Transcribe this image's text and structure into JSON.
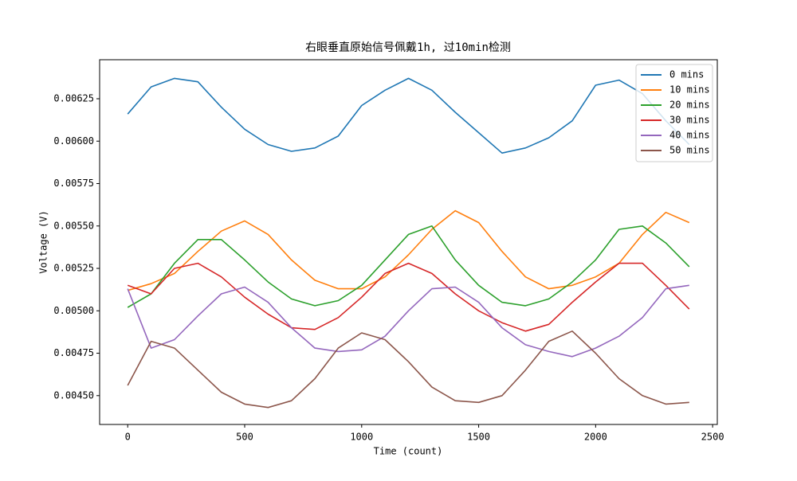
{
  "chart_data": {
    "type": "line",
    "title": "右眼垂直原始信号佩戴1h, 过10min检测",
    "x_label": "Time (count)",
    "y_label": "Voltage (V)",
    "x": [
      0,
      100,
      200,
      300,
      400,
      500,
      600,
      700,
      800,
      900,
      1000,
      1100,
      1200,
      1300,
      1400,
      1500,
      1600,
      1700,
      1800,
      1900,
      2000,
      2100,
      2200,
      2300,
      2400
    ],
    "series": [
      {
        "name": "0 mins",
        "color": "#1f77b4",
        "values": [
          0.00616,
          0.00632,
          0.00637,
          0.00635,
          0.0062,
          0.00607,
          0.00598,
          0.00594,
          0.00596,
          0.00603,
          0.00621,
          0.0063,
          0.00637,
          0.0063,
          0.00617,
          0.00605,
          0.00593,
          0.00596,
          0.00602,
          0.00612,
          0.00633,
          0.00636,
          0.00628,
          0.00612,
          0.00598
        ]
      },
      {
        "name": "10 mins",
        "color": "#ff7f0e",
        "values": [
          0.00512,
          0.00516,
          0.00522,
          0.00535,
          0.00547,
          0.00553,
          0.00545,
          0.0053,
          0.00518,
          0.00513,
          0.00513,
          0.0052,
          0.00533,
          0.00548,
          0.00559,
          0.00552,
          0.00535,
          0.0052,
          0.00513,
          0.00515,
          0.0052,
          0.00528,
          0.00545,
          0.00558,
          0.00552
        ]
      },
      {
        "name": "20 mins",
        "color": "#2ca02c",
        "values": [
          0.00502,
          0.0051,
          0.00528,
          0.00542,
          0.00542,
          0.0053,
          0.00517,
          0.00507,
          0.00503,
          0.00506,
          0.00515,
          0.0053,
          0.00545,
          0.0055,
          0.0053,
          0.00515,
          0.00505,
          0.00503,
          0.00507,
          0.00517,
          0.0053,
          0.00548,
          0.0055,
          0.0054,
          0.00526
        ]
      },
      {
        "name": "30 mins",
        "color": "#d62728",
        "values": [
          0.00515,
          0.0051,
          0.00525,
          0.00528,
          0.0052,
          0.00508,
          0.00498,
          0.0049,
          0.00489,
          0.00496,
          0.00508,
          0.00522,
          0.00528,
          0.00522,
          0.0051,
          0.005,
          0.00493,
          0.00488,
          0.00492,
          0.00505,
          0.00517,
          0.00528,
          0.00528,
          0.00515,
          0.00501
        ]
      },
      {
        "name": "40 mins",
        "color": "#9467bd",
        "values": [
          0.00513,
          0.00478,
          0.00483,
          0.00497,
          0.0051,
          0.00514,
          0.00505,
          0.0049,
          0.00478,
          0.00476,
          0.00477,
          0.00485,
          0.005,
          0.00513,
          0.00514,
          0.00505,
          0.0049,
          0.0048,
          0.00476,
          0.00473,
          0.00478,
          0.00485,
          0.00496,
          0.00513,
          0.00515
        ]
      },
      {
        "name": "50 mins",
        "color": "#8c564b",
        "values": [
          0.00456,
          0.00482,
          0.00478,
          0.00465,
          0.00452,
          0.00445,
          0.00443,
          0.00447,
          0.0046,
          0.00478,
          0.00487,
          0.00483,
          0.0047,
          0.00455,
          0.00447,
          0.00446,
          0.0045,
          0.00465,
          0.00482,
          0.00488,
          0.00475,
          0.0046,
          0.0045,
          0.00445,
          0.00446
        ]
      }
    ],
    "xlim": [
      -120,
      2520
    ],
    "ylim": [
      0.00433,
      0.00648
    ],
    "xticks": [
      0,
      500,
      1000,
      1500,
      2000,
      2500
    ],
    "yticks": [
      {
        "value": 0.0045,
        "label": "0.00450"
      },
      0.00475,
      {
        "value": 0.005,
        "label": "0.00500"
      },
      0.00525,
      {
        "value": 0.0055,
        "label": "0.00550"
      },
      0.00575,
      {
        "value": 0.006,
        "label": "0.00600"
      },
      0.00625
    ],
    "legend": "upper right"
  }
}
